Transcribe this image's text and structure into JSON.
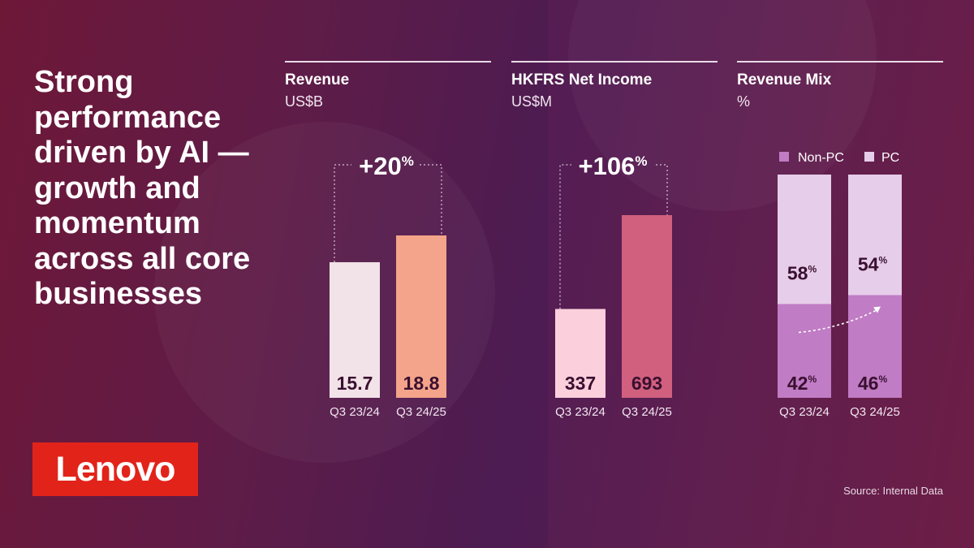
{
  "headline": "Strong\nperformance\ndriven by AI —\ngrowth and\nmomentum\nacross all core\nbusinesses",
  "logo_text": "Lenovo",
  "source": "Source: Internal Data",
  "colors": {
    "brand_red": "#e2231a",
    "revenue_prev": "#f1e3e7",
    "revenue_curr": "#f4a48a",
    "income_prev": "#fbd0dc",
    "income_curr": "#d0607e",
    "mix_nonpc": "#c07cc4",
    "mix_pc": "#e6cdea"
  },
  "chart_data": [
    {
      "type": "bar",
      "title": "Revenue",
      "unit": "US$B",
      "categories": [
        "Q3 23/24",
        "Q3 24/25"
      ],
      "values": [
        15.7,
        18.8
      ],
      "value_labels": [
        "15.7",
        "18.8"
      ],
      "growth_label": "+20",
      "growth_unit": "%"
    },
    {
      "type": "bar",
      "title": "HKFRS Net Income",
      "unit": "US$M",
      "categories": [
        "Q3 23/24",
        "Q3 24/25"
      ],
      "values": [
        337,
        693
      ],
      "value_labels": [
        "337",
        "693"
      ],
      "growth_label": "+106",
      "growth_unit": "%"
    },
    {
      "type": "bar",
      "stacked": true,
      "title": "Revenue Mix",
      "unit": "%",
      "categories": [
        "Q3 23/24",
        "Q3 24/25"
      ],
      "legend": [
        "Non-PC",
        "PC"
      ],
      "legend_position": "top",
      "series": [
        {
          "name": "Non-PC",
          "values": [
            42,
            46
          ],
          "labels": [
            "42",
            "46"
          ]
        },
        {
          "name": "PC",
          "values": [
            58,
            54
          ],
          "labels": [
            "58",
            "54"
          ]
        }
      ],
      "pct_sign": "%"
    }
  ]
}
